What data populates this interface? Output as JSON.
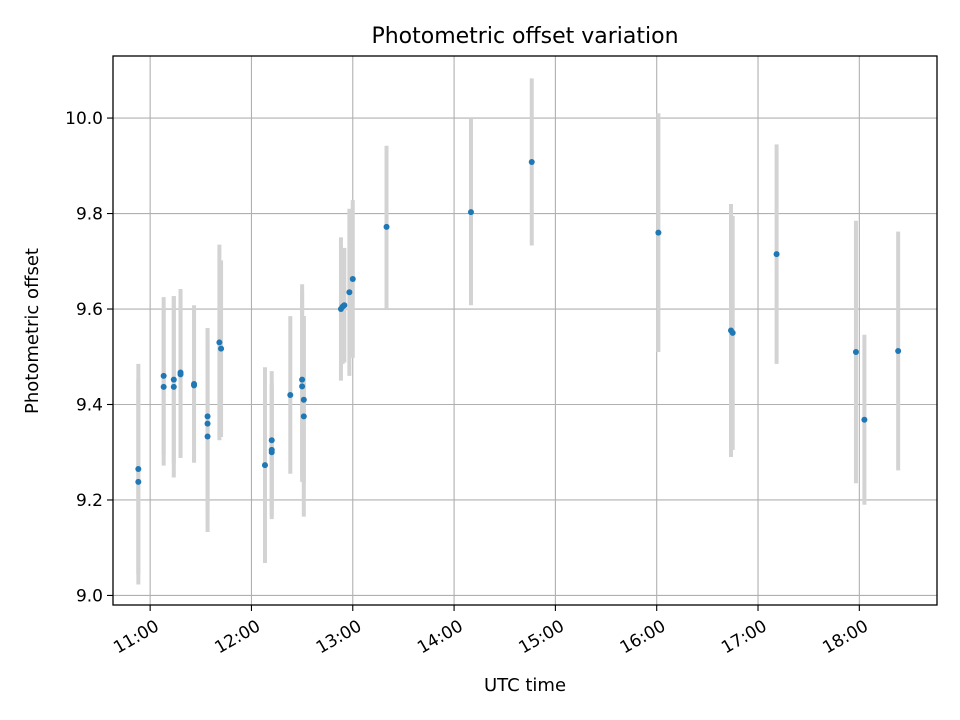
{
  "chart_data": {
    "type": "scatter",
    "title": "Photometric offset variation",
    "xlabel": "UTC time",
    "ylabel": "Photometric offset",
    "x_tick_labels": [
      "11:00",
      "12:00",
      "13:00",
      "14:00",
      "15:00",
      "16:00",
      "17:00",
      "18:00"
    ],
    "y_tick_labels": [
      "9.0",
      "9.2",
      "9.4",
      "9.6",
      "9.8",
      "10.0"
    ],
    "xlim": [
      "10:38",
      "18:46"
    ],
    "ylim": [
      8.98,
      10.13
    ],
    "grid": true,
    "marker_color": "#1f77b4",
    "errorbar_color": "#d3d3d3",
    "points": [
      {
        "time": "10:53",
        "y": 9.265,
        "err": 0.22
      },
      {
        "time": "10:53",
        "y": 9.238,
        "err": 0.215
      },
      {
        "time": "11:08",
        "y": 9.46,
        "err": 0.165
      },
      {
        "time": "11:08",
        "y": 9.437,
        "err": 0.165
      },
      {
        "time": "11:14",
        "y": 9.437,
        "err": 0.19
      },
      {
        "time": "11:14",
        "y": 9.452,
        "err": 0.175
      },
      {
        "time": "11:18",
        "y": 9.467,
        "err": 0.175
      },
      {
        "time": "11:18",
        "y": 9.463,
        "err": 0.175
      },
      {
        "time": "11:26",
        "y": 9.443,
        "err": 0.165
      },
      {
        "time": "11:26",
        "y": 9.44,
        "err": 0.16
      },
      {
        "time": "11:34",
        "y": 9.375,
        "err": 0.185
      },
      {
        "time": "11:34",
        "y": 9.36,
        "err": 0.2
      },
      {
        "time": "11:34",
        "y": 9.333,
        "err": 0.2
      },
      {
        "time": "11:41",
        "y": 9.53,
        "err": 0.205
      },
      {
        "time": "11:42",
        "y": 9.517,
        "err": 0.185
      },
      {
        "time": "12:08",
        "y": 9.273,
        "err": 0.205
      },
      {
        "time": "12:12",
        "y": 9.325,
        "err": 0.145
      },
      {
        "time": "12:12",
        "y": 9.3,
        "err": 0.14
      },
      {
        "time": "12:12",
        "y": 9.305,
        "err": 0.14
      },
      {
        "time": "12:23",
        "y": 9.42,
        "err": 0.165
      },
      {
        "time": "12:30",
        "y": 9.452,
        "err": 0.2
      },
      {
        "time": "12:30",
        "y": 9.438,
        "err": 0.2
      },
      {
        "time": "12:31",
        "y": 9.41,
        "err": 0.175
      },
      {
        "time": "12:31",
        "y": 9.375,
        "err": 0.21
      },
      {
        "time": "12:53",
        "y": 9.6,
        "err": 0.15
      },
      {
        "time": "12:54",
        "y": 9.605,
        "err": 0.12
      },
      {
        "time": "12:55",
        "y": 9.608,
        "err": 0.12
      },
      {
        "time": "12:58",
        "y": 9.635,
        "err": 0.175
      },
      {
        "time": "13:00",
        "y": 9.663,
        "err": 0.165
      },
      {
        "time": "13:20",
        "y": 9.772,
        "err": 0.17
      },
      {
        "time": "14:10",
        "y": 9.803,
        "err": 0.195
      },
      {
        "time": "14:46",
        "y": 9.908,
        "err": 0.175
      },
      {
        "time": "16:01",
        "y": 9.76,
        "err": 0.25
      },
      {
        "time": "16:44",
        "y": 9.555,
        "err": 0.265
      },
      {
        "time": "16:45",
        "y": 9.55,
        "err": 0.245
      },
      {
        "time": "17:11",
        "y": 9.715,
        "err": 0.23
      },
      {
        "time": "17:58",
        "y": 9.51,
        "err": 0.275
      },
      {
        "time": "18:03",
        "y": 9.368,
        "err": 0.178
      },
      {
        "time": "18:23",
        "y": 9.512,
        "err": 0.25
      }
    ]
  }
}
